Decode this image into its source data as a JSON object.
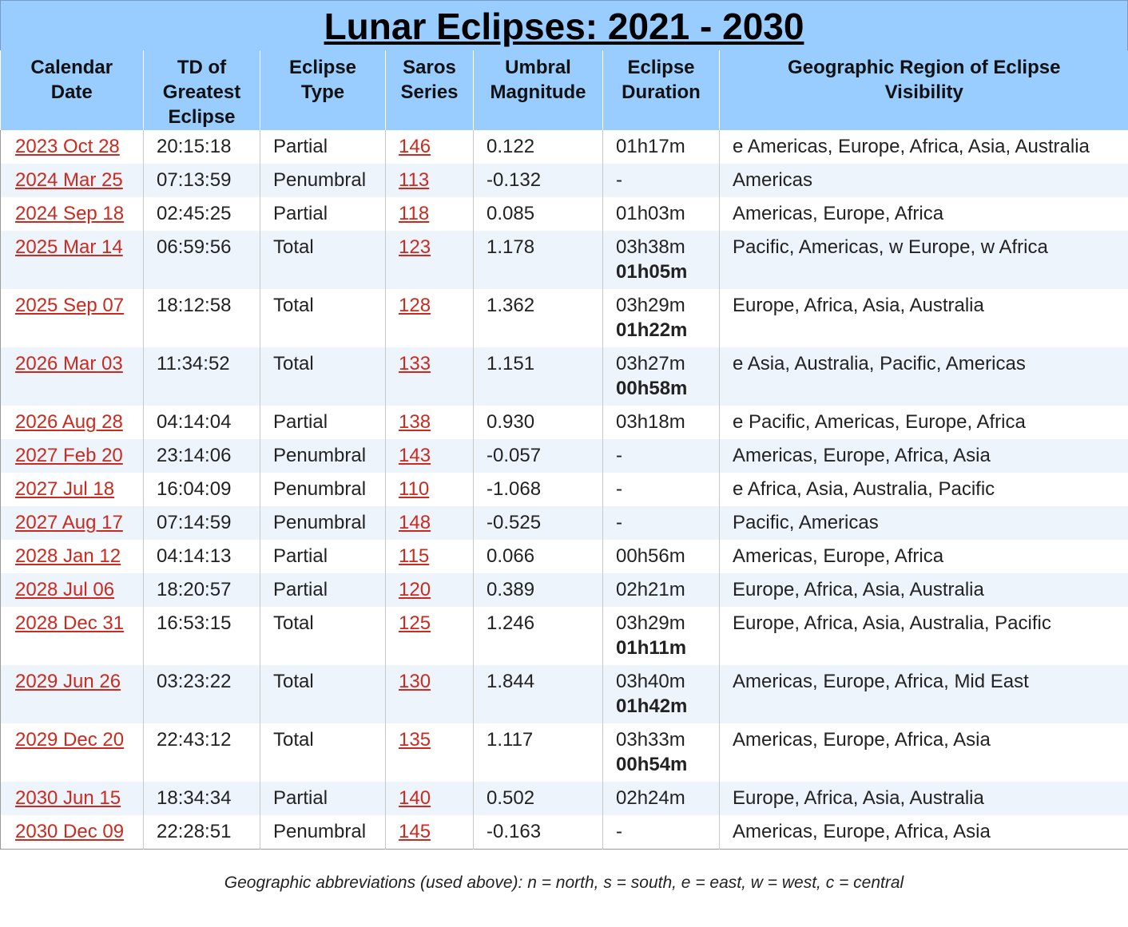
{
  "title": "Lunar Eclipses: 2021 - 2030",
  "columns": [
    [
      "Calendar",
      "Date"
    ],
    [
      "TD of",
      "Greatest",
      "Eclipse"
    ],
    [
      "Eclipse",
      "Type"
    ],
    [
      "Saros",
      "Series"
    ],
    [
      "Umbral",
      "Magnitude"
    ],
    [
      "Eclipse",
      "Duration"
    ],
    [
      "Geographic Region of Eclipse",
      "Visibility"
    ]
  ],
  "rows": [
    {
      "date": "2023 Oct 28",
      "td": "20:15:18",
      "type": "Partial",
      "saros": "146",
      "magnitude": "0.122",
      "duration": "01h17m",
      "duration_total": "",
      "region": "e Americas, Europe, Africa, Asia, Australia"
    },
    {
      "date": "2024 Mar 25",
      "td": "07:13:59",
      "type": "Penumbral",
      "saros": "113",
      "magnitude": "-0.132",
      "duration": "-",
      "duration_total": "",
      "region": "Americas"
    },
    {
      "date": "2024 Sep 18",
      "td": "02:45:25",
      "type": "Partial",
      "saros": "118",
      "magnitude": "0.085",
      "duration": "01h03m",
      "duration_total": "",
      "region": "Americas, Europe, Africa"
    },
    {
      "date": "2025 Mar 14",
      "td": "06:59:56",
      "type": "Total",
      "saros": "123",
      "magnitude": "1.178",
      "duration": "03h38m",
      "duration_total": "01h05m",
      "region": "Pacific, Americas, w Europe, w Africa"
    },
    {
      "date": "2025 Sep 07",
      "td": "18:12:58",
      "type": "Total",
      "saros": "128",
      "magnitude": "1.362",
      "duration": "03h29m",
      "duration_total": "01h22m",
      "region": "Europe, Africa, Asia, Australia"
    },
    {
      "date": "2026 Mar 03",
      "td": "11:34:52",
      "type": "Total",
      "saros": "133",
      "magnitude": "1.151",
      "duration": "03h27m",
      "duration_total": "00h58m",
      "region": "e Asia, Australia, Pacific, Americas"
    },
    {
      "date": "2026 Aug 28",
      "td": "04:14:04",
      "type": "Partial",
      "saros": "138",
      "magnitude": "0.930",
      "duration": "03h18m",
      "duration_total": "",
      "region": "e Pacific, Americas, Europe, Africa"
    },
    {
      "date": "2027 Feb 20",
      "td": "23:14:06",
      "type": "Penumbral",
      "saros": "143",
      "magnitude": "-0.057",
      "duration": "-",
      "duration_total": "",
      "region": "Americas, Europe, Africa, Asia"
    },
    {
      "date": "2027 Jul 18",
      "td": "16:04:09",
      "type": "Penumbral",
      "saros": "110",
      "magnitude": "-1.068",
      "duration": "-",
      "duration_total": "",
      "region": "e Africa, Asia, Australia, Pacific"
    },
    {
      "date": "2027 Aug 17",
      "td": "07:14:59",
      "type": "Penumbral",
      "saros": "148",
      "magnitude": "-0.525",
      "duration": "-",
      "duration_total": "",
      "region": "Pacific, Americas"
    },
    {
      "date": "2028 Jan 12",
      "td": "04:14:13",
      "type": "Partial",
      "saros": "115",
      "magnitude": "0.066",
      "duration": "00h56m",
      "duration_total": "",
      "region": "Americas, Europe, Africa"
    },
    {
      "date": "2028 Jul 06",
      "td": "18:20:57",
      "type": "Partial",
      "saros": "120",
      "magnitude": "0.389",
      "duration": "02h21m",
      "duration_total": "",
      "region": "Europe, Africa, Asia, Australia"
    },
    {
      "date": "2028 Dec 31",
      "td": "16:53:15",
      "type": "Total",
      "saros": "125",
      "magnitude": "1.246",
      "duration": "03h29m",
      "duration_total": "01h11m",
      "region": "Europe, Africa, Asia, Australia, Pacific"
    },
    {
      "date": "2029 Jun 26",
      "td": "03:23:22",
      "type": "Total",
      "saros": "130",
      "magnitude": "1.844",
      "duration": "03h40m",
      "duration_total": "01h42m",
      "region": "Americas, Europe, Africa, Mid East"
    },
    {
      "date": "2029 Dec 20",
      "td": "22:43:12",
      "type": "Total",
      "saros": "135",
      "magnitude": "1.117",
      "duration": "03h33m",
      "duration_total": "00h54m",
      "region": "Americas, Europe, Africa, Asia"
    },
    {
      "date": "2030 Jun 15",
      "td": "18:34:34",
      "type": "Partial",
      "saros": "140",
      "magnitude": "0.502",
      "duration": "02h24m",
      "duration_total": "",
      "region": "Europe, Africa, Asia, Australia"
    },
    {
      "date": "2030 Dec 09",
      "td": "22:28:51",
      "type": "Penumbral",
      "saros": "145",
      "magnitude": "-0.163",
      "duration": "-",
      "duration_total": "",
      "region": "Americas, Europe, Africa, Asia"
    }
  ],
  "footnote": "Geographic abbreviations (used above): n = north, s = south, e = east, w = west, c = central",
  "colors": {
    "header_bg": "#99ccff",
    "link": "#cc2a1f",
    "alt_row": "#eef4fc"
  }
}
